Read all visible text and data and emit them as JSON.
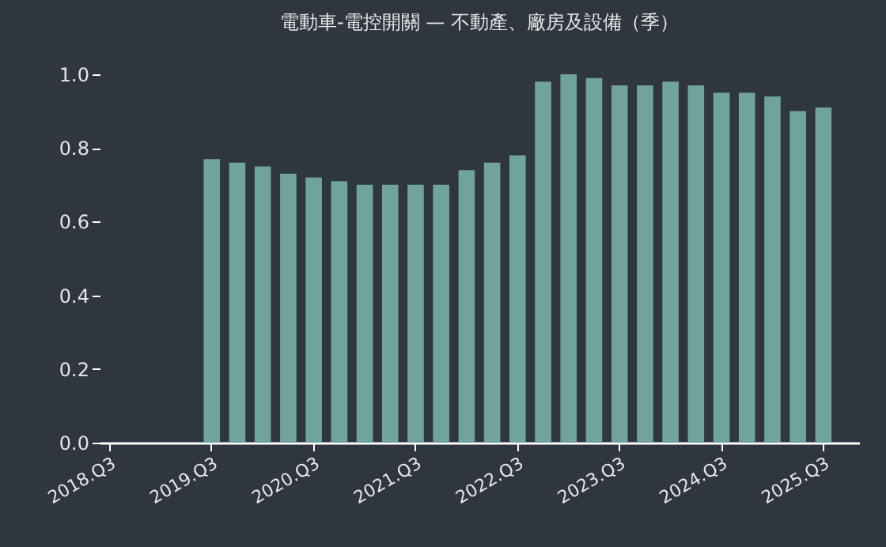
{
  "chart_data": {
    "type": "bar",
    "title": "電動車-電控開關 — 不動產、廠房及設備（季）",
    "categories": [
      "2018.Q3",
      null,
      null,
      null,
      "2019.Q3",
      null,
      null,
      null,
      "2020.Q3",
      null,
      null,
      null,
      "2021.Q3",
      null,
      null,
      null,
      "2022.Q3",
      null,
      null,
      null,
      "2023.Q3",
      null,
      null,
      null,
      "2024.Q3",
      null,
      null,
      null,
      "2025.Q3",
      null
    ],
    "values": [
      null,
      null,
      null,
      null,
      0.77,
      0.76,
      0.75,
      0.73,
      0.72,
      0.71,
      0.7,
      0.7,
      0.7,
      0.7,
      0.74,
      0.76,
      0.78,
      0.98,
      1.0,
      0.99,
      0.97,
      0.97,
      0.98,
      0.97,
      0.95,
      0.95,
      0.94,
      0.9,
      0.91,
      null
    ],
    "color": "#6fa39b",
    "ylim": [
      0,
      1.0
    ],
    "yticks": [
      {
        "value": 0,
        "label": "0.0"
      },
      0.2,
      0.4,
      0.6,
      0.8,
      {
        "value": 1.0,
        "label": "1.0"
      }
    ],
    "grid": false
  }
}
